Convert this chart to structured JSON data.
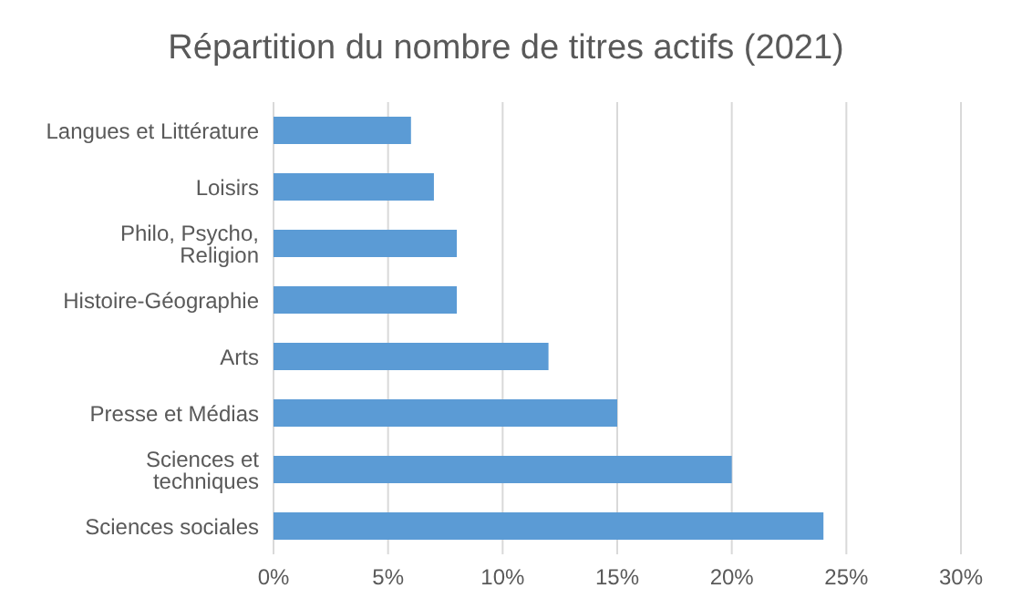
{
  "chart_data": {
    "type": "bar",
    "orientation": "horizontal",
    "title": "Répartition du nombre de titres actifs (2021)",
    "categories": [
      "Langues et Littérature",
      "Loisirs",
      "Philo, Psycho, Religion",
      "Histoire-Géographie",
      "Arts",
      "Presse et Médias",
      "Sciences et techniques",
      "Sciences sociales"
    ],
    "values": [
      6,
      7,
      8,
      8,
      12,
      15,
      20,
      24
    ],
    "color": "#5b9bd5",
    "xlim": [
      0,
      30
    ],
    "xticks": [
      {
        "value": 0,
        "label": "0%"
      },
      {
        "value": 5,
        "label": "5%"
      },
      {
        "value": 10,
        "label": "10%"
      },
      {
        "value": 15,
        "label": "15%"
      },
      {
        "value": 20,
        "label": "20%"
      },
      {
        "value": 25,
        "label": "25%"
      },
      {
        "value": 30,
        "label": "30%"
      }
    ],
    "grid": "x",
    "legend": false
  }
}
